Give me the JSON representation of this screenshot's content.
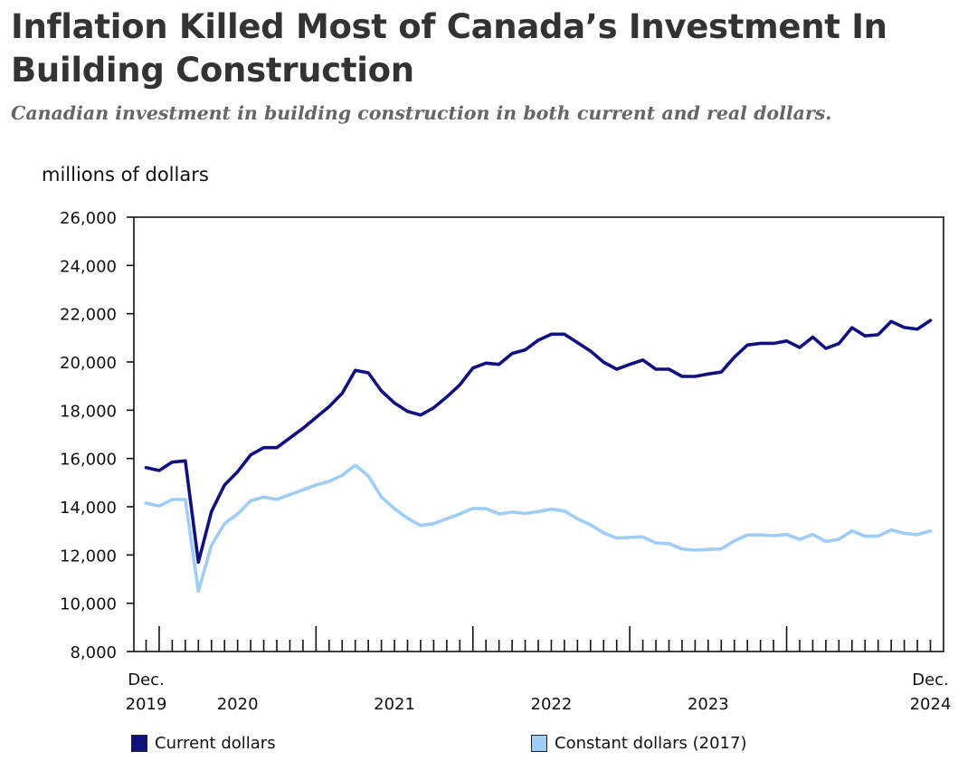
{
  "title": "Inflation Killed Most of Canada’s Investment In Building Construction",
  "subtitle": "Canadian investment in building construction in both current and real dollars.",
  "chart_data": {
    "type": "line",
    "ylabel": "millions of dollars",
    "ylim": [
      8000,
      26000
    ],
    "yticks": [
      8000,
      10000,
      12000,
      14000,
      16000,
      18000,
      20000,
      22000,
      24000,
      26000
    ],
    "ytick_labels": [
      "8,000",
      "10,000",
      "12,000",
      "14,000",
      "16,000",
      "18,000",
      "20,000",
      "22,000",
      "24,000",
      "26,000"
    ],
    "x_start": "2019-12",
    "x_end": "2024-12",
    "x_tick_labels": [
      {
        "month": 0,
        "top": "Dec.",
        "bottom": "2019"
      },
      {
        "month": 7,
        "top": "",
        "bottom": "2020"
      },
      {
        "month": 19,
        "top": "",
        "bottom": "2021"
      },
      {
        "month": 31,
        "top": "",
        "bottom": "2022"
      },
      {
        "month": 43,
        "top": "",
        "bottom": "2023"
      },
      {
        "month": 60,
        "top": "Dec.",
        "bottom": "2024"
      }
    ],
    "x_major_ticks": [
      1,
      13,
      25,
      37,
      49
    ],
    "grid": false,
    "legend_position": "bottom",
    "series": [
      {
        "name": "Current dollars",
        "color": "#10107f",
        "values": [
          15620,
          15500,
          15850,
          15900,
          11700,
          13800,
          14900,
          15450,
          16150,
          16450,
          16450,
          16850,
          17250,
          17700,
          18150,
          18700,
          19650,
          19550,
          18800,
          18300,
          17950,
          17800,
          18100,
          18550,
          19050,
          19750,
          19950,
          19900,
          20350,
          20500,
          20900,
          21150,
          21150,
          20800,
          20450,
          19990,
          19700,
          19900,
          20080,
          19700,
          19700,
          19400,
          19400,
          19500,
          19580,
          20200,
          20700,
          20770,
          20770,
          20870,
          20600,
          21030,
          20560,
          20760,
          21420,
          21080,
          21130,
          21680,
          21430,
          21360,
          21720
        ]
      },
      {
        "name": "Constant dollars (2017)",
        "color": "#9fcdf5",
        "values": [
          14150,
          14030,
          14300,
          14300,
          10500,
          12400,
          13300,
          13700,
          14250,
          14400,
          14300,
          14500,
          14700,
          14900,
          15050,
          15300,
          15720,
          15280,
          14400,
          13920,
          13520,
          13220,
          13300,
          13500,
          13700,
          13930,
          13920,
          13700,
          13780,
          13720,
          13800,
          13900,
          13820,
          13500,
          13250,
          12920,
          12700,
          12730,
          12750,
          12500,
          12470,
          12250,
          12200,
          12230,
          12250,
          12590,
          12830,
          12830,
          12800,
          12850,
          12650,
          12850,
          12560,
          12650,
          13000,
          12780,
          12780,
          13040,
          12900,
          12840,
          13000
        ]
      }
    ]
  }
}
